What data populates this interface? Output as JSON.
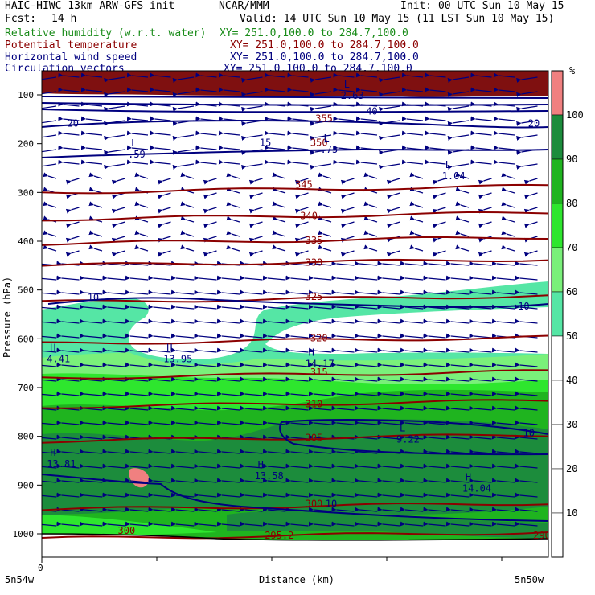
{
  "header": {
    "model": "HAIC-HIWC 13km ARW-GFS init",
    "org": "NCAR/MMM",
    "init": "Init: 00 UTC Sun 10 May 15",
    "fcst_label": "Fcst:",
    "fcst_value": "14 h",
    "valid": "Valid: 14 UTC Sun 10 May 15 (11 LST Sun 10 May 15)",
    "fields": [
      {
        "name": "Relative humidity (w.r.t. water)",
        "xy": "XY= 251.0,100.0 to 284.7,100.0",
        "color": "#1a8c1a"
      },
      {
        "name": "Potential temperature",
        "xy": "XY= 251.0,100.0 to 284.7,100.0",
        "color": "#8b0000"
      },
      {
        "name": "Horizontal wind speed",
        "xy": "XY= 251.0,100.0 to 284.7,100.0",
        "color": "#00007f"
      },
      {
        "name": "Circulation vectors",
        "xy": "XY= 251.0,100.0 to 284.7,100.0",
        "color": "#00007f"
      }
    ]
  },
  "chart_data": {
    "type": "heatmap",
    "title": "",
    "xlabel": "Distance (km)",
    "ylabel": "Pressure (hPa)",
    "x_start_label": "5n54w",
    "x_end_label": "5n50w",
    "x_zero_tick": "0",
    "yticks": [
      100,
      200,
      300,
      400,
      500,
      600,
      700,
      800,
      900,
      1000
    ],
    "ylim_hpa": [
      1050,
      65
    ],
    "colorbar": {
      "unit": "%",
      "levels": [
        10,
        20,
        30,
        40,
        50,
        60,
        70,
        80,
        90,
        100
      ],
      "colors": [
        "#ffffff",
        "#ffffff",
        "#ffffff",
        "#ffffff",
        "#ffffff",
        "#55e6a5",
        "#7af07a",
        "#2ee62e",
        "#1fb41f",
        "#1c8c3c",
        "#f08080"
      ]
    },
    "theta_contours": [
      {
        "value": 345,
        "pressure": 300
      },
      {
        "value": 340,
        "pressure": 355
      },
      {
        "value": 335,
        "pressure": 405
      },
      {
        "value": 330,
        "pressure": 450
      },
      {
        "value": 325,
        "pressure": 525
      },
      {
        "value": 320,
        "pressure": 610
      },
      {
        "value": 315,
        "pressure": 680
      },
      {
        "value": 310,
        "pressure": 740
      },
      {
        "value": 305,
        "pressure": 810
      },
      {
        "value": 300,
        "pressure": 950
      },
      {
        "value": 295,
        "pressure": 1010
      }
    ],
    "contour_labels": [
      {
        "text": "20",
        "series": "wind",
        "x_frac": 0.05,
        "pressure": 165
      },
      {
        "text": "20",
        "series": "wind",
        "x_frac": 0.96,
        "pressure": 165
      },
      {
        "text": "15",
        "series": "wind",
        "x_frac": 0.43,
        "pressure": 205
      },
      {
        "text": "10",
        "series": "wind",
        "x_frac": 0.09,
        "pressure": 522
      },
      {
        "text": "10",
        "series": "wind",
        "x_frac": 0.94,
        "pressure": 540
      },
      {
        "text": "10",
        "series": "wind",
        "x_frac": 0.95,
        "pressure": 800
      },
      {
        "text": "10",
        "series": "wind",
        "x_frac": 0.56,
        "pressure": 945
      },
      {
        "text": "40",
        "series": "wind",
        "x_frac": 0.64,
        "pressure": 140
      },
      {
        "text": "355",
        "series": "theta",
        "x_frac": 0.54,
        "pressure": 155
      },
      {
        "text": "350",
        "series": "theta",
        "x_frac": 0.53,
        "pressure": 205
      },
      {
        "text": "345",
        "series": "theta",
        "x_frac": 0.5,
        "pressure": 290
      },
      {
        "text": "340",
        "series": "theta",
        "x_frac": 0.51,
        "pressure": 355
      },
      {
        "text": "335",
        "series": "theta",
        "x_frac": 0.52,
        "pressure": 405
      },
      {
        "text": "330",
        "series": "theta",
        "x_frac": 0.52,
        "pressure": 450
      },
      {
        "text": "325",
        "series": "theta",
        "x_frac": 0.52,
        "pressure": 520
      },
      {
        "text": "320",
        "series": "theta",
        "x_frac": 0.53,
        "pressure": 605
      },
      {
        "text": "315",
        "series": "theta",
        "x_frac": 0.53,
        "pressure": 675
      },
      {
        "text": "310",
        "series": "theta",
        "x_frac": 0.52,
        "pressure": 740
      },
      {
        "text": "305",
        "series": "theta",
        "x_frac": 0.52,
        "pressure": 810
      },
      {
        "text": "300",
        "series": "theta",
        "x_frac": 0.52,
        "pressure": 945
      },
      {
        "text": "300",
        "series": "theta",
        "x_frac": 0.15,
        "pressure": 1000
      },
      {
        "text": "295.2",
        "series": "theta",
        "x_frac": 0.44,
        "pressure": 1010
      },
      {
        "text": "290.",
        "series": "theta",
        "x_frac": 0.97,
        "pressure": 1010
      }
    ],
    "extrema": [
      {
        "type": "L",
        "value": ".59",
        "x_frac": 0.17,
        "pressure": 225
      },
      {
        "type": "L",
        "value": ".75",
        "x_frac": 0.55,
        "pressure": 215
      },
      {
        "type": "L",
        "value": "1.04",
        "x_frac": 0.79,
        "pressure": 270
      },
      {
        "type": "H",
        "value": "4.41",
        "x_frac": 0.01,
        "pressure": 645
      },
      {
        "type": "H",
        "value": "13.95",
        "x_frac": 0.24,
        "pressure": 645
      },
      {
        "type": "H",
        "value": "14.17",
        "x_frac": 0.52,
        "pressure": 655
      },
      {
        "type": "L",
        "value": "9.22",
        "x_frac": 0.7,
        "pressure": 810
      },
      {
        "type": "H",
        "value": "13.81",
        "x_frac": 0.01,
        "pressure": 860
      },
      {
        "type": "H",
        "value": "13.58",
        "x_frac": 0.42,
        "pressure": 885
      },
      {
        "type": "H",
        "value": "14.04",
        "x_frac": 0.83,
        "pressure": 910
      },
      {
        "type": "L",
        "value": "2.63",
        "x_frac": 0.59,
        "pressure": 105
      }
    ]
  }
}
